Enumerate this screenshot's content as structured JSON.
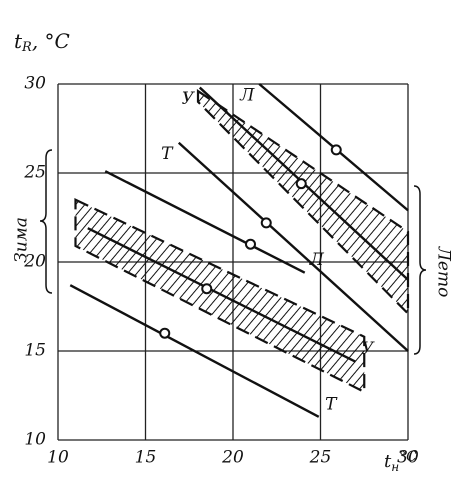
{
  "chart_data": {
    "type": "line",
    "ylabel": {
      "symbol": "t",
      "subscript": "R",
      "unit": ", °C"
    },
    "xlabel": {
      "symbol": "t",
      "subscript": "н",
      "unit": "°C"
    },
    "xlim": [
      10,
      30
    ],
    "ylim": [
      10,
      30
    ],
    "xticks": [
      10,
      15,
      20,
      25,
      30
    ],
    "yticks": [
      10,
      15,
      20,
      25,
      30
    ],
    "grid": true,
    "color": "#111111",
    "side_labels": [
      "Зима",
      "Лето"
    ],
    "series": [
      {
        "name": "Т",
        "label_at": "end",
        "x": [
          10.7,
          24.9
        ],
        "values": [
          18.7,
          11.3
        ],
        "marker_x": [
          16.1
        ],
        "marker_values": [
          16.0
        ]
      },
      {
        "name": "У",
        "label_at": "end",
        "x": [
          11.7,
          27
        ],
        "values": [
          21.9,
          14.4
        ],
        "marker_x": [
          18.5
        ],
        "marker_values": [
          18.5
        ]
      },
      {
        "name": "Л",
        "label_at": "end",
        "x": [
          12.7,
          24.1
        ],
        "values": [
          25.1,
          19.4
        ],
        "marker_x": [
          21
        ],
        "marker_values": [
          21.0
        ]
      },
      {
        "name": "Т",
        "label_at": "start",
        "x": [
          16.9,
          30
        ],
        "values": [
          26.7,
          15
        ],
        "marker_x": [
          21.9
        ],
        "marker_values": [
          22.2
        ]
      },
      {
        "name": "У",
        "label_at": "start",
        "x": [
          18.1,
          30
        ],
        "values": [
          29.8,
          19.0
        ],
        "marker_x": [
          23.9
        ],
        "marker_values": [
          24.4
        ]
      },
      {
        "name": "Л",
        "label_at": "start",
        "x": [
          21.5,
          30
        ],
        "values": [
          30.0,
          22.9
        ],
        "marker_x": [
          25.9
        ],
        "marker_values": [
          26.3
        ]
      }
    ],
    "bands": [
      {
        "x": [
          11,
          27.5
        ],
        "upper": [
          23.5,
          15.8
        ],
        "lower": [
          20.9,
          12.7
        ]
      },
      {
        "x": [
          18,
          30
        ],
        "upper": [
          29.6,
          21.7
        ],
        "lower": [
          29.0,
          17.1
        ]
      }
    ]
  }
}
